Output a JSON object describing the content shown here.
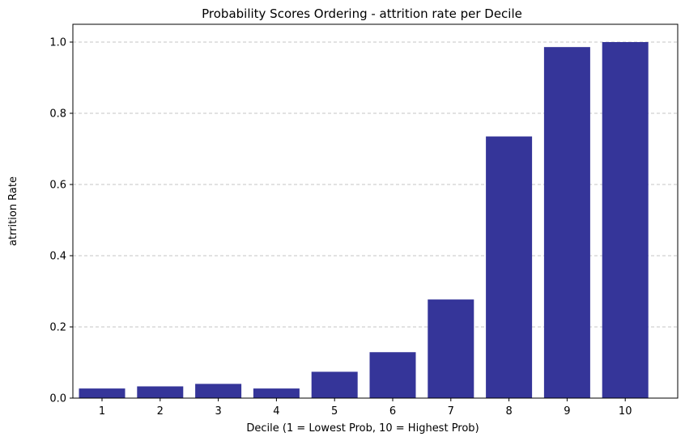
{
  "chart_data": {
    "type": "bar",
    "title": "Probability Scores Ordering - attrition rate per Decile",
    "xlabel": "Decile (1 = Lowest Prob, 10 = Highest Prob)",
    "ylabel": "atrrition Rate",
    "categories": [
      "1",
      "2",
      "3",
      "4",
      "5",
      "6",
      "7",
      "8",
      "9",
      "10"
    ],
    "values": [
      0.027,
      0.033,
      0.04,
      0.027,
      0.074,
      0.129,
      0.277,
      0.735,
      0.986,
      1.0
    ],
    "ylim": [
      0,
      1.05
    ],
    "yticks": [
      0.0,
      0.2,
      0.4,
      0.6,
      0.8,
      1.0
    ],
    "ytick_labels": [
      "0.0",
      "0.2",
      "0.4",
      "0.6",
      "0.8",
      "1.0"
    ],
    "grid": "y dashed",
    "bar_color": "#353599"
  }
}
